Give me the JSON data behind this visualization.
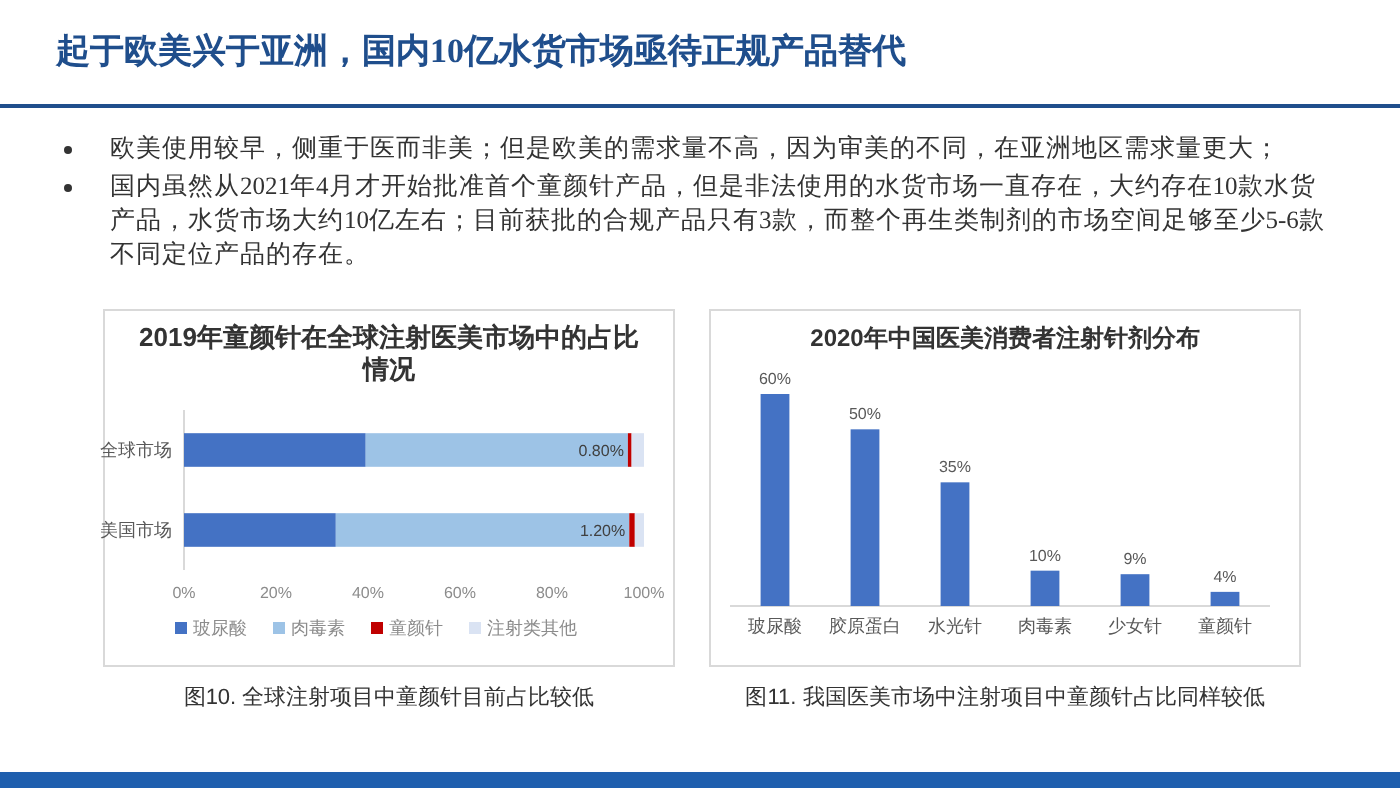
{
  "chart_data": [
    {
      "type": "other",
      "title": "起于欧美兴于亚洲，国内10亿水货市场亟待正规产品替代",
      "annotations": [
        "欧美使用较早，侧重于医而非美；但是欧美的需求量不高，因为审美的不同，在亚洲地区需求量更大；",
        "国内虽然从2021年4月才开始批准首个童颜针产品，但是非法使用的水货市场一直存在，大约存在10款水货产品，水货市场大约10亿左右；目前获批的合规产品只有3款，而整个再生类制剂的市场空间足够至少5-6款不同定位产品的存在。"
      ]
    },
    {
      "type": "bar",
      "orientation": "horizontal",
      "stacked": true,
      "title": "2019年童颜针在全球注射医美市场中的占比情况",
      "categories": [
        "全球市场",
        "美国市场"
      ],
      "series": [
        {
          "name": "玻尿酸",
          "color": "#4472c4",
          "values": [
            39.5,
            33
          ]
        },
        {
          "name": "肉毒素",
          "color": "#9dc3e6",
          "values": [
            57,
            63.8
          ]
        },
        {
          "name": "童颜针",
          "color": "#c00000",
          "values": [
            0.8,
            1.2
          ],
          "value_labels": [
            "0.80%",
            "1.20%"
          ]
        },
        {
          "name": "注射类其他",
          "color": "#dae3f3",
          "values": [
            2.7,
            2.0
          ]
        }
      ],
      "xlim": [
        0,
        100
      ],
      "xticks": [
        {
          "value": 0,
          "label": "0%"
        },
        {
          "value": 20,
          "label": "20%"
        },
        {
          "value": 40,
          "label": "40%"
        },
        {
          "value": 60,
          "label": "60%"
        },
        {
          "value": 80,
          "label": "80%"
        },
        {
          "value": 100,
          "label": "100%"
        }
      ],
      "legend": "bottom",
      "annotations": [
        "图10. 全球注射项目中童颜针目前占比较低"
      ]
    },
    {
      "type": "bar",
      "title": "2020年中国医美消费者注射针剂分布",
      "categories": [
        "玻尿酸",
        "胶原蛋白",
        "水光针",
        "肉毒素",
        "少女针",
        "童颜针"
      ],
      "values": [
        60,
        50,
        35,
        10,
        9,
        4
      ],
      "value_labels": [
        "60%",
        "50%",
        "35%",
        "10%",
        "9%",
        "4%"
      ],
      "color": "#4472c4",
      "annotations": [
        "图11. 我国医美市场中注射项目中童颜针占比同样较低"
      ]
    }
  ]
}
